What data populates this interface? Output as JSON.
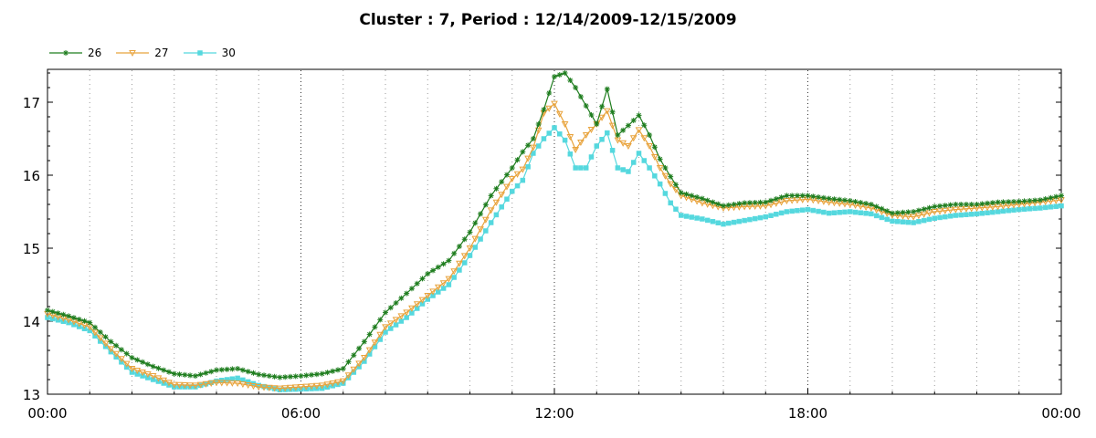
{
  "chart_data": {
    "type": "line",
    "title": "Cluster : 7, Period : 12/14/2009-12/15/2009",
    "xlabel": "",
    "ylabel": "",
    "x_tick_labels": [
      "00:00",
      "06:00",
      "12:00",
      "18:00",
      "00:00"
    ],
    "y_ticks": [
      13,
      14,
      15,
      16,
      17
    ],
    "ylim": [
      13,
      17.45
    ],
    "xlim_hours": [
      0,
      24
    ],
    "grid": "dotted vertical",
    "legend_position": "top-left",
    "x_hours": [
      0,
      0.5,
      1,
      1.5,
      2,
      2.5,
      3,
      3.5,
      4,
      4.5,
      5,
      5.5,
      6,
      6.5,
      7,
      7.5,
      8,
      8.5,
      9,
      9.5,
      10,
      10.5,
      11,
      11.25,
      11.5,
      11.75,
      12,
      12.25,
      12.5,
      12.75,
      13,
      13.25,
      13.5,
      13.75,
      14,
      14.25,
      14.5,
      14.75,
      15,
      15.5,
      16,
      16.5,
      17,
      17.5,
      18,
      18.5,
      19,
      19.5,
      20,
      20.5,
      21,
      21.5,
      22,
      22.5,
      23,
      23.5,
      24
    ],
    "series": [
      {
        "name": "26",
        "color": "#1e7d1e",
        "marker": "star",
        "values": [
          14.15,
          14.07,
          13.98,
          13.72,
          13.5,
          13.38,
          13.28,
          13.25,
          13.33,
          13.35,
          13.27,
          13.23,
          13.25,
          13.28,
          13.35,
          13.72,
          14.12,
          14.38,
          14.65,
          14.83,
          15.22,
          15.72,
          16.1,
          16.32,
          16.5,
          16.9,
          17.35,
          17.4,
          17.2,
          16.95,
          16.7,
          17.18,
          16.55,
          16.68,
          16.82,
          16.55,
          16.22,
          15.98,
          15.76,
          15.68,
          15.58,
          15.62,
          15.63,
          15.72,
          15.72,
          15.68,
          15.65,
          15.6,
          15.48,
          15.5,
          15.57,
          15.6,
          15.6,
          15.63,
          15.64,
          15.66,
          15.72
        ]
      },
      {
        "name": "27",
        "color": "#e8a33c",
        "marker": "triangle",
        "values": [
          14.1,
          14.02,
          13.92,
          13.62,
          13.35,
          13.25,
          13.13,
          13.12,
          13.16,
          13.15,
          13.1,
          13.08,
          13.1,
          13.12,
          13.18,
          13.5,
          13.92,
          14.12,
          14.35,
          14.58,
          15.0,
          15.52,
          15.95,
          16.08,
          16.38,
          16.85,
          16.98,
          16.7,
          16.35,
          16.55,
          16.7,
          16.88,
          16.48,
          16.4,
          16.62,
          16.4,
          16.1,
          15.88,
          15.72,
          15.62,
          15.55,
          15.57,
          15.58,
          15.65,
          15.67,
          15.63,
          15.6,
          15.55,
          15.45,
          15.43,
          15.5,
          15.53,
          15.55,
          15.57,
          15.6,
          15.63,
          15.66
        ]
      },
      {
        "name": "30",
        "color": "#55d8de",
        "marker": "square",
        "values": [
          14.05,
          13.98,
          13.87,
          13.58,
          13.3,
          13.2,
          13.1,
          13.1,
          13.18,
          13.22,
          13.12,
          13.06,
          13.07,
          13.08,
          13.15,
          13.45,
          13.85,
          14.05,
          14.3,
          14.5,
          14.9,
          15.35,
          15.78,
          15.93,
          16.3,
          16.5,
          16.65,
          16.48,
          16.1,
          16.1,
          16.4,
          16.58,
          16.1,
          16.05,
          16.3,
          16.1,
          15.88,
          15.62,
          15.45,
          15.4,
          15.33,
          15.38,
          15.43,
          15.5,
          15.53,
          15.48,
          15.5,
          15.47,
          15.37,
          15.35,
          15.41,
          15.45,
          15.47,
          15.5,
          15.53,
          15.55,
          15.58
        ]
      }
    ]
  }
}
